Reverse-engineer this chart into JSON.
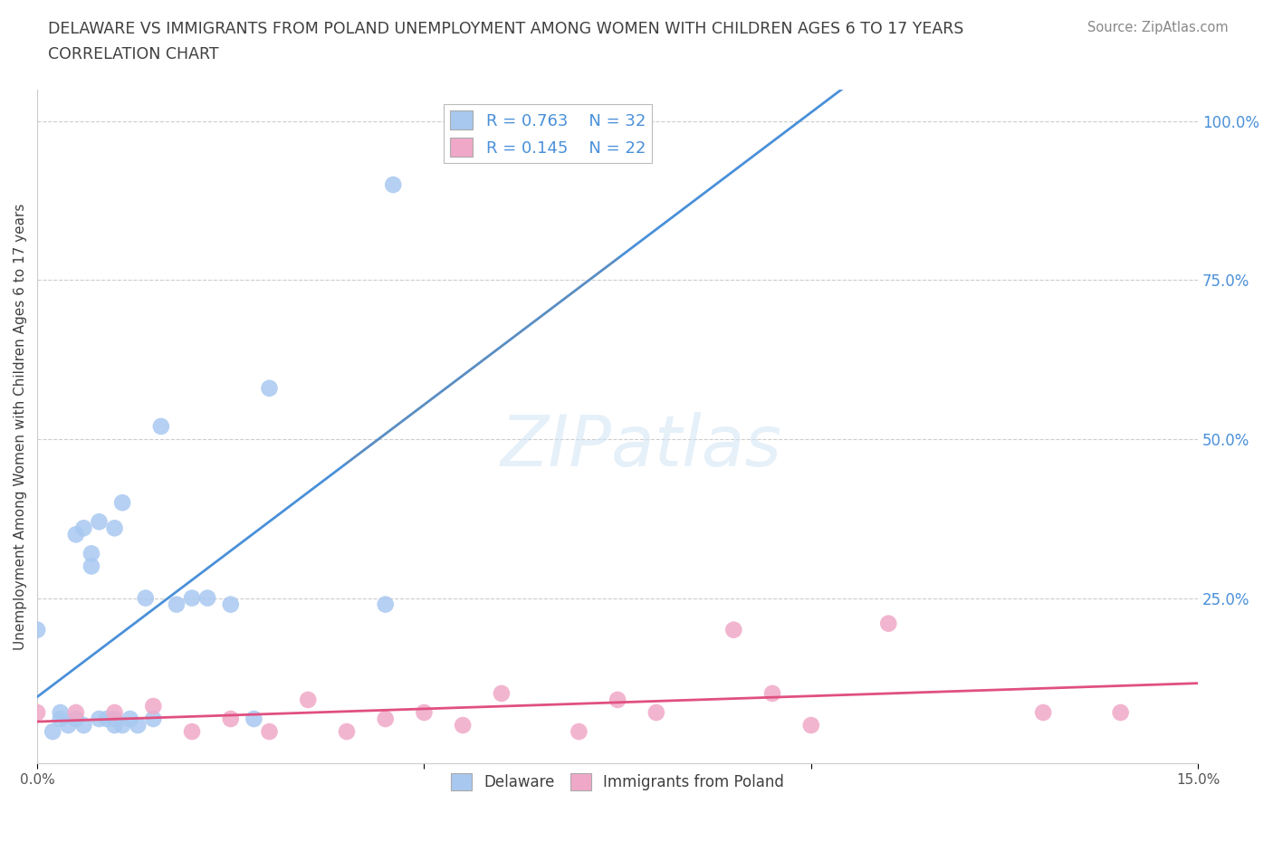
{
  "title_line1": "DELAWARE VS IMMIGRANTS FROM POLAND UNEMPLOYMENT AMONG WOMEN WITH CHILDREN AGES 6 TO 17 YEARS",
  "title_line2": "CORRELATION CHART",
  "source_text": "Source: ZipAtlas.com",
  "watermark": "ZIPatlas",
  "ylabel": "Unemployment Among Women with Children Ages 6 to 17 years",
  "xmin": 0.0,
  "xmax": 0.15,
  "ymin": -0.01,
  "ymax": 1.05,
  "delaware_color": "#a8c8f0",
  "poland_color": "#f0a8c8",
  "delaware_line_color": "#4a90d9",
  "poland_line_color": "#e05080",
  "background_color": "#ffffff",
  "delaware_x": [
    0.0,
    0.002,
    0.003,
    0.003,
    0.004,
    0.005,
    0.005,
    0.006,
    0.006,
    0.007,
    0.007,
    0.008,
    0.008,
    0.009,
    0.01,
    0.01,
    0.01,
    0.011,
    0.011,
    0.012,
    0.013,
    0.014,
    0.015,
    0.016,
    0.018,
    0.02,
    0.022,
    0.025,
    0.028,
    0.03,
    0.045,
    0.046
  ],
  "delaware_y": [
    0.2,
    0.04,
    0.06,
    0.07,
    0.05,
    0.06,
    0.35,
    0.05,
    0.36,
    0.3,
    0.32,
    0.06,
    0.37,
    0.06,
    0.05,
    0.06,
    0.36,
    0.05,
    0.4,
    0.06,
    0.05,
    0.25,
    0.06,
    0.52,
    0.24,
    0.25,
    0.25,
    0.24,
    0.06,
    0.58,
    0.24,
    0.9
  ],
  "poland_x": [
    0.0,
    0.005,
    0.01,
    0.015,
    0.02,
    0.025,
    0.03,
    0.035,
    0.04,
    0.045,
    0.05,
    0.055,
    0.06,
    0.07,
    0.075,
    0.08,
    0.09,
    0.095,
    0.1,
    0.11,
    0.13,
    0.14
  ],
  "poland_y": [
    0.07,
    0.07,
    0.07,
    0.08,
    0.04,
    0.06,
    0.04,
    0.09,
    0.04,
    0.06,
    0.07,
    0.05,
    0.1,
    0.04,
    0.09,
    0.07,
    0.2,
    0.1,
    0.05,
    0.21,
    0.07,
    0.07
  ]
}
